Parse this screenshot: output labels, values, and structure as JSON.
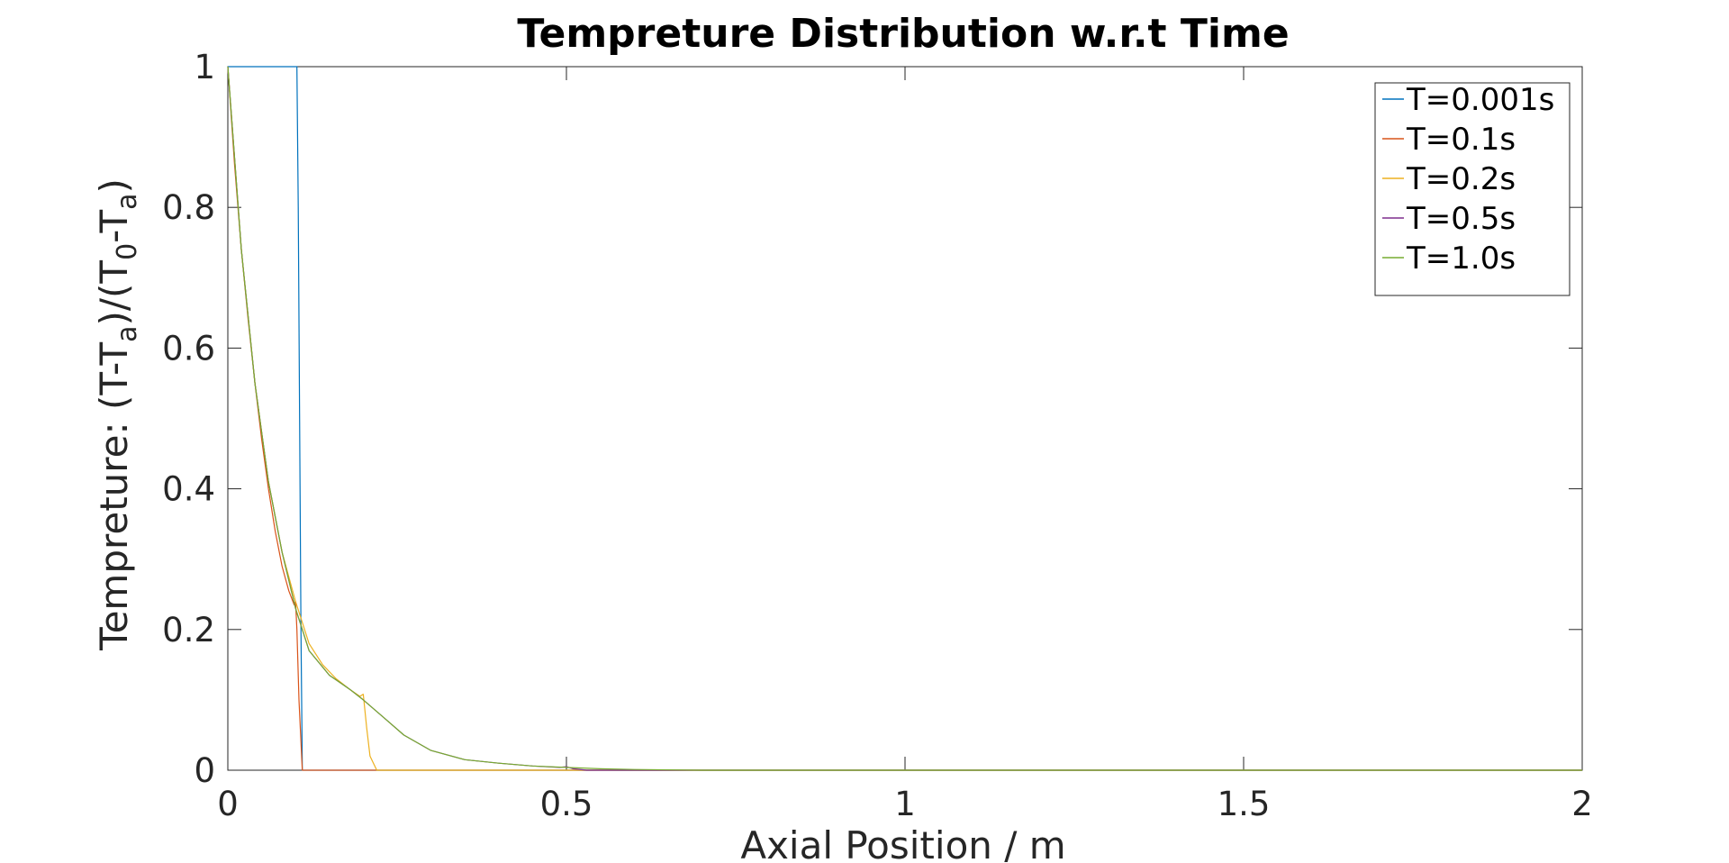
{
  "chart_data": {
    "type": "line",
    "title": "Tempreture Distribution w.r.t Time",
    "xlabel": "Axial Position / m",
    "ylabel": {
      "parts": [
        "Tempreture: (T-T",
        "a",
        ")/(T",
        "0",
        "-T",
        "a",
        ")"
      ]
    },
    "xlim": [
      0,
      2
    ],
    "ylim": [
      0,
      1
    ],
    "xticks": [
      0,
      0.5,
      1,
      1.5,
      2
    ],
    "xtick_labels": [
      "0",
      "0.5",
      "1",
      "1.5",
      "2"
    ],
    "yticks": [
      0,
      0.2,
      0.4,
      0.6,
      0.8,
      1
    ],
    "ytick_labels": [
      "0",
      "0.2",
      "0.4",
      "0.6",
      "0.8",
      "1"
    ],
    "grid": false,
    "legend_position": "top-right",
    "series": [
      {
        "name": "T=0.001s",
        "color": "#0072BD",
        "x": [
          0,
          0.1,
          0.102,
          0.104,
          0.106,
          0.108,
          0.11,
          2
        ],
        "y": [
          1,
          1,
          1,
          0.8,
          0.5,
          0.2,
          0,
          0
        ]
      },
      {
        "name": "T=0.1s",
        "color": "#D95319",
        "x": [
          0,
          0.01,
          0.02,
          0.03,
          0.04,
          0.05,
          0.06,
          0.07,
          0.08,
          0.09,
          0.098,
          0.1,
          0.102,
          0.105,
          0.11,
          0.12,
          2
        ],
        "y": [
          1,
          0.86,
          0.74,
          0.64,
          0.55,
          0.47,
          0.4,
          0.34,
          0.29,
          0.255,
          0.235,
          0.24,
          0.2,
          0.1,
          0,
          0,
          0
        ]
      },
      {
        "name": "T=0.2s",
        "color": "#EDB120",
        "x": [
          0,
          0.02,
          0.04,
          0.06,
          0.08,
          0.1,
          0.12,
          0.14,
          0.16,
          0.18,
          0.195,
          0.2,
          0.205,
          0.21,
          0.22,
          2
        ],
        "y": [
          1,
          0.74,
          0.55,
          0.41,
          0.31,
          0.24,
          0.18,
          0.15,
          0.13,
          0.115,
          0.105,
          0.108,
          0.06,
          0.02,
          0,
          0
        ]
      },
      {
        "name": "T=0.5s",
        "color": "#7E2F8E",
        "x": [
          0,
          0.02,
          0.04,
          0.06,
          0.08,
          0.1,
          0.12,
          0.15,
          0.18,
          0.2,
          0.23,
          0.26,
          0.3,
          0.35,
          0.4,
          0.45,
          0.49,
          0.5,
          0.51,
          0.53,
          0.6,
          2
        ],
        "y": [
          1,
          0.74,
          0.55,
          0.41,
          0.31,
          0.23,
          0.17,
          0.135,
          0.115,
          0.1,
          0.075,
          0.05,
          0.028,
          0.015,
          0.01,
          0.006,
          0.004,
          0.005,
          0.002,
          0,
          0,
          0
        ]
      },
      {
        "name": "T=1.0s",
        "color": "#77AC30",
        "x": [
          0,
          0.02,
          0.04,
          0.06,
          0.08,
          0.1,
          0.12,
          0.15,
          0.18,
          0.2,
          0.23,
          0.26,
          0.3,
          0.35,
          0.4,
          0.45,
          0.5,
          0.55,
          0.6,
          0.7,
          0.8,
          1.0,
          1.5,
          2.0
        ],
        "y": [
          1,
          0.74,
          0.55,
          0.41,
          0.31,
          0.23,
          0.17,
          0.135,
          0.115,
          0.1,
          0.075,
          0.05,
          0.028,
          0.015,
          0.01,
          0.006,
          0.004,
          0.002,
          0.001,
          0,
          0,
          0,
          0,
          0
        ]
      }
    ]
  }
}
